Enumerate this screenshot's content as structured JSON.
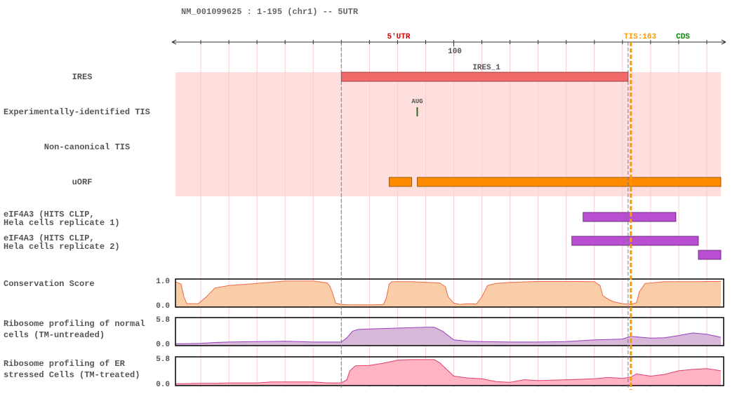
{
  "header": {
    "title": "NM_001099625 : 1-195 (chr1) -- 5UTR"
  },
  "axis": {
    "start": 1,
    "end": 195,
    "tick_label": "100",
    "tick_value": 100,
    "region_utr_label": "5'UTR",
    "region_cds_label": "CDS",
    "tis_label": "TIS:163",
    "tis_position": 163,
    "region_divider_position": 60,
    "colors": {
      "utr": "#dd0000",
      "cds": "#008800",
      "tis": "#ff9900"
    }
  },
  "tracks": {
    "ires": {
      "label": "IRES",
      "feature_label": "IRES_1",
      "feature": {
        "start": 60,
        "end": 162
      },
      "color": "#f26b6b"
    },
    "experimental_tis": {
      "label": "Experimentally-identified TIS",
      "mark_label": "AUG",
      "position": 87,
      "color": "#2d6a1f"
    },
    "noncanonical_tis": {
      "label": "Non-canonical TIS"
    },
    "uorf": {
      "label": "uORF",
      "features": [
        {
          "start": 77,
          "end": 85
        },
        {
          "start": 87,
          "end": 195
        }
      ],
      "color": "#ff8c00"
    },
    "eif4a3_rep1": {
      "label_line1": "eIF4A3 (HITS CLIP,",
      "label_line2": "Hela cells replicate 1)",
      "features": [
        {
          "start": 146,
          "end": 179
        }
      ],
      "color": "#b84fd0"
    },
    "eif4a3_rep2": {
      "label_line1": "eIF4A3 (HITS CLIP,",
      "label_line2": "Hela cells replicate 2)",
      "features": [
        {
          "start": 142,
          "end": 187
        },
        {
          "start": 187,
          "end": 195
        }
      ],
      "color": "#b84fd0"
    },
    "highlight_color": "#ffdede"
  },
  "chart_data": [
    {
      "type": "area",
      "title": "Conservation Score",
      "ylim": [
        0,
        1.0
      ],
      "yticks": [
        "1.0",
        "0.0"
      ],
      "color": "#f9cda8",
      "line_color": "#ee6a4a",
      "series": [
        {
          "x": [
            1,
            3,
            4,
            5,
            8,
            9,
            12,
            15,
            20,
            30,
            40,
            50,
            55,
            56,
            57,
            58,
            60,
            62,
            70,
            75,
            76,
            77,
            78,
            85,
            95,
            97,
            98,
            100,
            102,
            105,
            108,
            110,
            112,
            115,
            120,
            130,
            140,
            150,
            152,
            153,
            155,
            157,
            160,
            163,
            165,
            166,
            168,
            175,
            185,
            195
          ],
          "values": [
            0.95,
            0.85,
            0.35,
            0.08,
            0.08,
            0.07,
            0.35,
            0.7,
            0.8,
            0.88,
            0.98,
            0.98,
            0.9,
            0.75,
            0.45,
            0.1,
            0.05,
            0.04,
            0.03,
            0.05,
            0.3,
            0.85,
            0.95,
            0.95,
            0.9,
            0.75,
            0.35,
            0.1,
            0.05,
            0.08,
            0.06,
            0.35,
            0.8,
            0.88,
            0.92,
            0.96,
            0.96,
            0.95,
            0.8,
            0.4,
            0.25,
            0.15,
            0.08,
            0.05,
            0.12,
            0.55,
            0.88,
            0.95,
            0.95,
            0.96
          ]
        }
      ]
    },
    {
      "type": "area",
      "title": "Ribosome profiling of normal cells (TM-untreaded)",
      "ylim": [
        0,
        5.8
      ],
      "yticks": [
        "5.8",
        "0.0"
      ],
      "color": "#d8b8d8",
      "line_color": "#9a3fc0",
      "series": [
        {
          "x": [
            1,
            10,
            15,
            20,
            30,
            40,
            45,
            50,
            60,
            62,
            64,
            66,
            70,
            80,
            90,
            93,
            96,
            100,
            105,
            110,
            120,
            130,
            140,
            145,
            150,
            155,
            160,
            163,
            170,
            175,
            180,
            185,
            190,
            195
          ],
          "values": [
            0.1,
            0.2,
            0.4,
            0.5,
            0.6,
            0.7,
            0.6,
            0.5,
            0.5,
            1.5,
            3.0,
            3.4,
            3.5,
            3.7,
            3.9,
            3.9,
            3.0,
            1.0,
            0.7,
            0.6,
            0.5,
            0.5,
            0.6,
            0.8,
            1.0,
            1.1,
            1.2,
            1.8,
            1.4,
            1.5,
            2.0,
            2.6,
            2.3,
            1.6
          ]
        }
      ]
    },
    {
      "type": "area",
      "title": "Ribosome profiling of ER stressed Cells (TM-treated)",
      "ylim": [
        0,
        5.8
      ],
      "yticks": [
        "5.8",
        "0.0"
      ],
      "color": "#ffb3c3",
      "line_color": "#e04070",
      "series": [
        {
          "x": [
            1,
            10,
            15,
            20,
            30,
            35,
            50,
            55,
            60,
            62,
            63,
            65,
            70,
            75,
            80,
            85,
            90,
            93,
            95,
            100,
            105,
            110,
            115,
            120,
            125,
            130,
            140,
            145,
            150,
            155,
            160,
            163,
            165,
            170,
            175,
            180,
            185,
            190,
            195
          ],
          "values": [
            0.1,
            0.2,
            0.2,
            0.3,
            0.3,
            0.5,
            0.5,
            0.3,
            0.3,
            1.0,
            3.0,
            4.1,
            4.2,
            4.7,
            5.4,
            5.5,
            5.5,
            5.5,
            4.8,
            1.8,
            1.4,
            1.2,
            0.6,
            0.4,
            1.0,
            0.8,
            1.0,
            1.1,
            1.2,
            1.5,
            1.3,
            1.6,
            2.3,
            1.8,
            2.2,
            3.0,
            3.3,
            3.5,
            3.0
          ]
        }
      ]
    }
  ]
}
